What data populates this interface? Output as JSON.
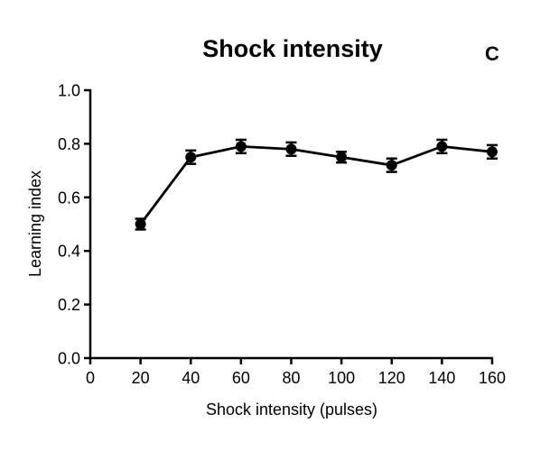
{
  "chart_data": {
    "type": "line",
    "title": "Shock intensity",
    "panel_label": "C",
    "xlabel": "Shock intensity (pulses)",
    "ylabel": "Learning index",
    "xlim": [
      0,
      160
    ],
    "ylim": [
      0.0,
      1.0
    ],
    "x_ticks": [
      "0",
      "20",
      "40",
      "60",
      "80",
      "100",
      "120",
      "140",
      "160"
    ],
    "y_ticks": [
      "0.0",
      "0.2",
      "0.4",
      "0.6",
      "0.8",
      "1.0"
    ],
    "grid": false,
    "series": [
      {
        "x": [
          20,
          40,
          60,
          80,
          100,
          120,
          140,
          160
        ],
        "y": [
          0.5,
          0.75,
          0.79,
          0.78,
          0.75,
          0.72,
          0.79,
          0.77
        ],
        "error": [
          0.02,
          0.025,
          0.025,
          0.025,
          0.02,
          0.025,
          0.025,
          0.025
        ]
      }
    ]
  }
}
